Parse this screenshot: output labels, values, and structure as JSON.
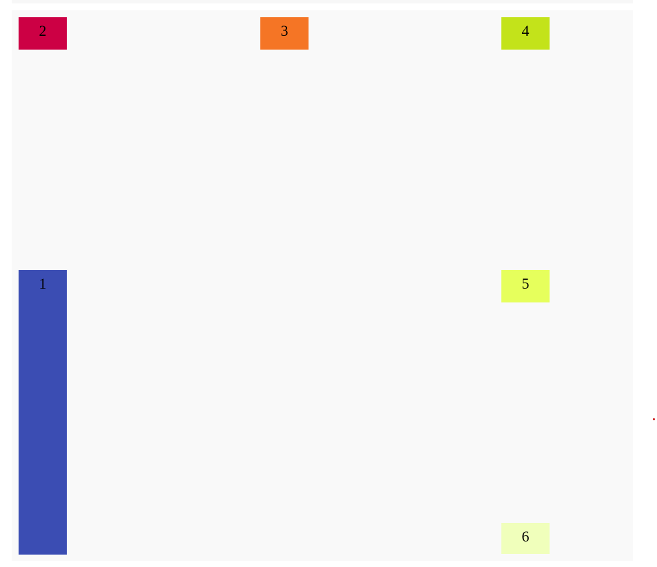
{
  "boxes": [
    {
      "id": "box-1",
      "label": "1",
      "color": "#3b4db3"
    },
    {
      "id": "box-2",
      "label": "2",
      "color": "#cc0044"
    },
    {
      "id": "box-3",
      "label": "3",
      "color": "#f57525"
    },
    {
      "id": "box-4",
      "label": "4",
      "color": "#c3e31a"
    },
    {
      "id": "box-5",
      "label": "5",
      "color": "#e6ff5c"
    },
    {
      "id": "box-6",
      "label": "6",
      "color": "#f0ffbb"
    }
  ],
  "colors": {
    "container_background": "#f9f9f9",
    "marker_dot": "#cc1a1a"
  }
}
